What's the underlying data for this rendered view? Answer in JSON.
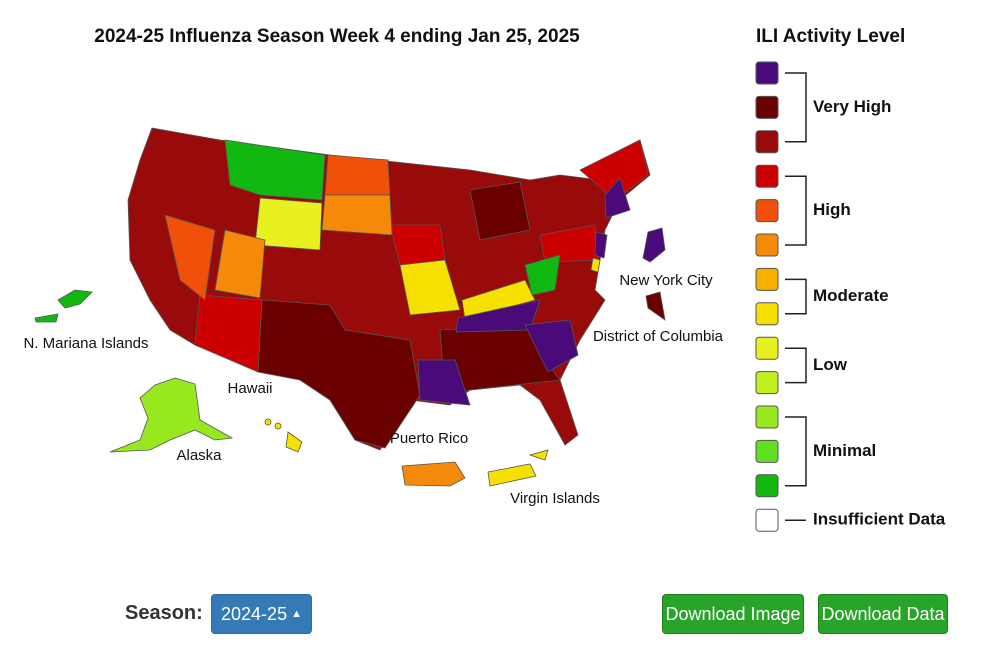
{
  "title": "2024-25 Influenza Season Week 4 ending Jan 25, 2025",
  "legend": {
    "title": "ILI Activity Level",
    "levels": [
      {
        "color": "#4b0a7a"
      },
      {
        "color": "#6b0000"
      },
      {
        "color": "#990a0a"
      },
      {
        "color": "#cc0000"
      },
      {
        "color": "#f0500a"
      },
      {
        "color": "#f58a0a"
      },
      {
        "color": "#f5b000"
      },
      {
        "color": "#f5e000"
      },
      {
        "color": "#e8f020"
      },
      {
        "color": "#c0f020"
      },
      {
        "color": "#98e820"
      },
      {
        "color": "#60e020"
      },
      {
        "color": "#10b810"
      },
      {
        "color": "#ffffff"
      }
    ],
    "groups": [
      {
        "label": "Very High",
        "size": 3
      },
      {
        "label": "High",
        "size": 3
      },
      {
        "label": "Moderate",
        "size": 2
      },
      {
        "label": "Low",
        "size": 2
      },
      {
        "label": "Minimal",
        "size": 3
      },
      {
        "label": "Insufficient Data",
        "size": 1
      }
    ]
  },
  "map_labels": [
    "N. Mariana Islands",
    "Hawaii",
    "Alaska",
    "Puerto Rico",
    "Virgin Islands",
    "New York City",
    "District of Columbia"
  ],
  "controls": {
    "season_label": "Season:",
    "season_value": "2024-25",
    "buttons": [
      "Download Image",
      "Download Data"
    ]
  }
}
